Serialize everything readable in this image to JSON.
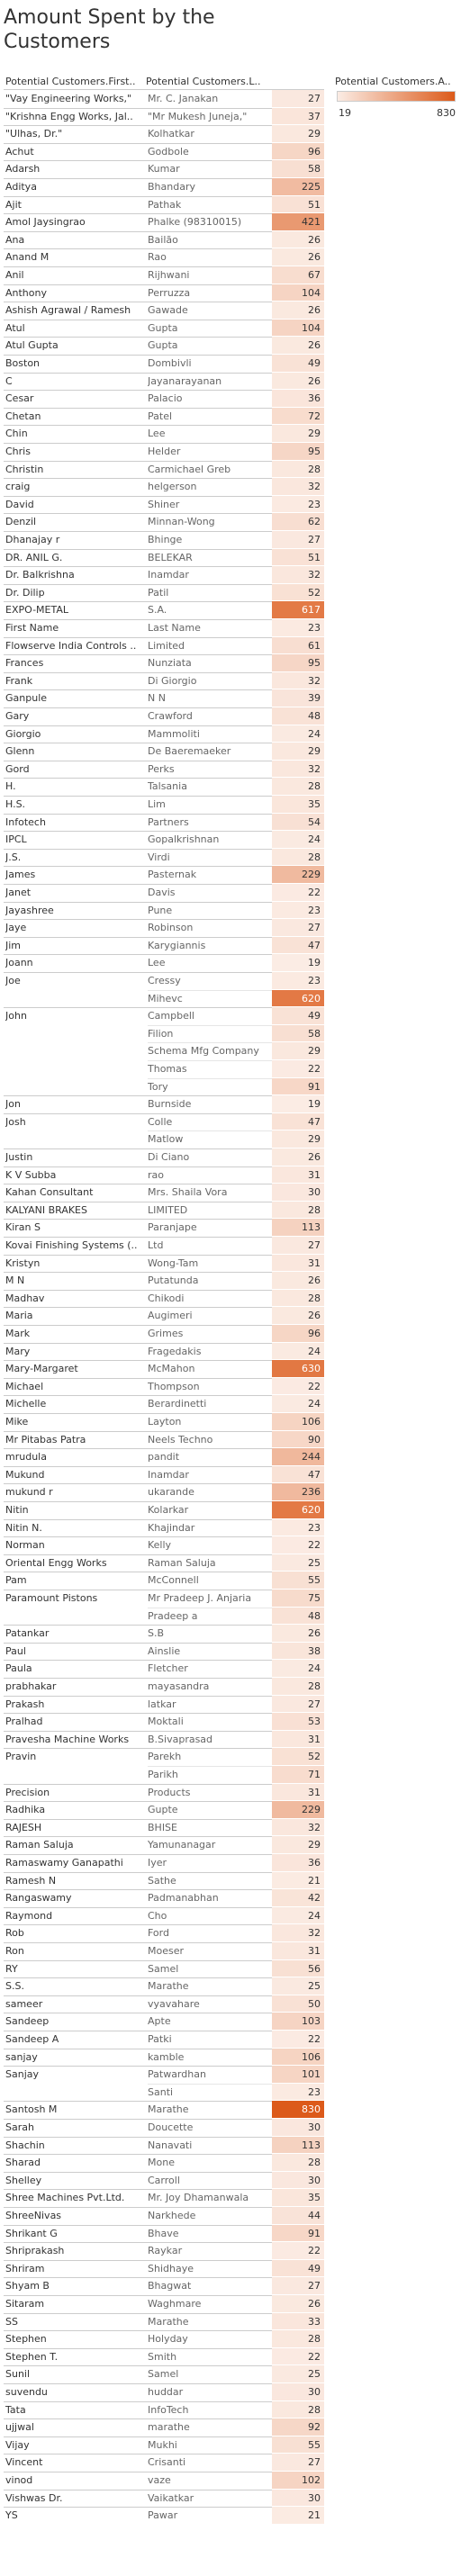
{
  "title": "Amount Spent by the Customers",
  "headers": {
    "first": "Potential Customers.First..",
    "last": "Potential Customers.L..",
    "legend": "Potential Customers.A.."
  },
  "legend": {
    "min": "19",
    "max": "830"
  },
  "colors": {
    "low": "#fbece4",
    "high": "#dc5a1a",
    "grid": "#cccccc"
  },
  "chart_data": {
    "type": "table",
    "title": "Amount Spent by the Customers",
    "columns": [
      "Potential Customers.First..",
      "Potential Customers.L..",
      "Potential Customers.A.."
    ],
    "value_range": [
      19,
      830
    ],
    "rows": [
      {
        "first": "\"Vay Engineering Works,\"",
        "last": "Mr. C. Janakan",
        "value": 27
      },
      {
        "first": "\"Krishna Engg Works, Jal..",
        "last": "\"Mr Mukesh Juneja,\"",
        "value": 37
      },
      {
        "first": "\"Ulhas, Dr.\"",
        "last": "Kolhatkar",
        "value": 29
      },
      {
        "first": "Achut",
        "last": "Godbole",
        "value": 96
      },
      {
        "first": "Adarsh",
        "last": "Kumar",
        "value": 58
      },
      {
        "first": "Aditya",
        "last": "Bhandary",
        "value": 225
      },
      {
        "first": "Ajit",
        "last": "Pathak",
        "value": 51
      },
      {
        "first": "Amol Jaysingrao",
        "last": "Phalke (98310015)",
        "value": 421
      },
      {
        "first": "Ana",
        "last": "Bailão",
        "value": 26
      },
      {
        "first": "Anand M",
        "last": "Rao",
        "value": 26
      },
      {
        "first": "Anil",
        "last": "Rijhwani",
        "value": 67
      },
      {
        "first": "Anthony",
        "last": "Perruzza",
        "value": 104
      },
      {
        "first": "Ashish Agrawal / Ramesh",
        "last": "Gawade",
        "value": 26
      },
      {
        "first": "Atul",
        "last": "Gupta",
        "value": 104
      },
      {
        "first": "Atul Gupta",
        "last": "Gupta",
        "value": 26
      },
      {
        "first": "Boston",
        "last": "Dombivli",
        "value": 49
      },
      {
        "first": "C",
        "last": "Jayanarayanan",
        "value": 26
      },
      {
        "first": "Cesar",
        "last": "Palacio",
        "value": 36
      },
      {
        "first": "Chetan",
        "last": "Patel",
        "value": 72
      },
      {
        "first": "Chin",
        "last": "Lee",
        "value": 29
      },
      {
        "first": "Chris",
        "last": "Helder",
        "value": 95
      },
      {
        "first": "Christin",
        "last": "Carmichael Greb",
        "value": 28
      },
      {
        "first": "craig",
        "last": "helgerson",
        "value": 32
      },
      {
        "first": "David",
        "last": "Shiner",
        "value": 23
      },
      {
        "first": "Denzil",
        "last": "Minnan-Wong",
        "value": 62
      },
      {
        "first": "Dhanajay r",
        "last": "Bhinge",
        "value": 27
      },
      {
        "first": "DR. ANIL G.",
        "last": "BELEKAR",
        "value": 51
      },
      {
        "first": "Dr. Balkrishna",
        "last": "Inamdar",
        "value": 32
      },
      {
        "first": "Dr. Dilip",
        "last": "Patil",
        "value": 52
      },
      {
        "first": "EXPO-METAL",
        "last": "S.A.",
        "value": 617
      },
      {
        "first": "First Name",
        "last": "Last Name",
        "value": 23
      },
      {
        "first": "Flowserve India Controls ..",
        "last": "Limited",
        "value": 61
      },
      {
        "first": "Frances",
        "last": "Nunziata",
        "value": 95
      },
      {
        "first": "Frank",
        "last": "Di Giorgio",
        "value": 32
      },
      {
        "first": "Ganpule",
        "last": "N N",
        "value": 39
      },
      {
        "first": "Gary",
        "last": "Crawford",
        "value": 48
      },
      {
        "first": "Giorgio",
        "last": "Mammoliti",
        "value": 24
      },
      {
        "first": "Glenn",
        "last": "De Baeremaeker",
        "value": 29
      },
      {
        "first": "Gord",
        "last": "Perks",
        "value": 32
      },
      {
        "first": "H.",
        "last": "Talsania",
        "value": 28
      },
      {
        "first": "H.S.",
        "last": "Lim",
        "value": 35
      },
      {
        "first": "Infotech",
        "last": "Partners",
        "value": 54
      },
      {
        "first": "IPCL",
        "last": "Gopalkrishnan",
        "value": 24
      },
      {
        "first": "J.S.",
        "last": "Virdi",
        "value": 28
      },
      {
        "first": "James",
        "last": "Pasternak",
        "value": 229
      },
      {
        "first": "Janet",
        "last": "Davis",
        "value": 22
      },
      {
        "first": "Jayashree",
        "last": "Pune",
        "value": 23
      },
      {
        "first": "Jaye",
        "last": "Robinson",
        "value": 27
      },
      {
        "first": "Jim",
        "last": "Karygiannis",
        "value": 47
      },
      {
        "first": "Joann",
        "last": "Lee",
        "value": 19
      },
      {
        "first": "Joe",
        "last": "Cressy",
        "value": 23
      },
      {
        "first": "",
        "last": "Mihevc",
        "value": 620
      },
      {
        "first": "John",
        "last": "Campbell",
        "value": 49
      },
      {
        "first": "",
        "last": "Filion",
        "value": 58
      },
      {
        "first": "",
        "last": "Schema Mfg Company",
        "value": 29
      },
      {
        "first": "",
        "last": "Thomas",
        "value": 22
      },
      {
        "first": "",
        "last": "Tory",
        "value": 91
      },
      {
        "first": "Jon",
        "last": "Burnside",
        "value": 19
      },
      {
        "first": "Josh",
        "last": "Colle",
        "value": 47
      },
      {
        "first": "",
        "last": "Matlow",
        "value": 29
      },
      {
        "first": "Justin",
        "last": "Di Ciano",
        "value": 26
      },
      {
        "first": "K V Subba",
        "last": "rao",
        "value": 31
      },
      {
        "first": "Kahan Consultant",
        "last": "Mrs. Shaila Vora",
        "value": 30
      },
      {
        "first": "KALYANI BRAKES",
        "last": "LIMITED",
        "value": 28
      },
      {
        "first": "Kiran S",
        "last": "Paranjape",
        "value": 113
      },
      {
        "first": "Kovai Finishing Systems (..",
        "last": "Ltd",
        "value": 27
      },
      {
        "first": "Kristyn",
        "last": "Wong-Tam",
        "value": 31
      },
      {
        "first": "M N",
        "last": "Putatunda",
        "value": 26
      },
      {
        "first": "Madhav",
        "last": "Chikodi",
        "value": 28
      },
      {
        "first": "Maria",
        "last": "Augimeri",
        "value": 26
      },
      {
        "first": "Mark",
        "last": "Grimes",
        "value": 96
      },
      {
        "first": "Mary",
        "last": "Fragedakis",
        "value": 24
      },
      {
        "first": "Mary-Margaret",
        "last": "McMahon",
        "value": 630
      },
      {
        "first": "Michael",
        "last": "Thompson",
        "value": 22
      },
      {
        "first": "Michelle",
        "last": "Berardinetti",
        "value": 24
      },
      {
        "first": "Mike",
        "last": "Layton",
        "value": 106
      },
      {
        "first": "Mr Pitabas Patra",
        "last": "Neels Techno",
        "value": 90
      },
      {
        "first": "mrudula",
        "last": "pandit",
        "value": 244
      },
      {
        "first": "Mukund",
        "last": "Inamdar",
        "value": 47
      },
      {
        "first": "mukund r",
        "last": "ukarande",
        "value": 236
      },
      {
        "first": "Nitin",
        "last": "Kolarkar",
        "value": 620
      },
      {
        "first": "Nitin N.",
        "last": "Khajindar",
        "value": 23
      },
      {
        "first": "Norman",
        "last": "Kelly",
        "value": 22
      },
      {
        "first": "Oriental Engg Works",
        "last": "Raman Saluja",
        "value": 25
      },
      {
        "first": "Pam",
        "last": "McConnell",
        "value": 55
      },
      {
        "first": "Paramount Pistons",
        "last": "Mr Pradeep J. Anjaria",
        "value": 75
      },
      {
        "first": "",
        "last": "Pradeep a",
        "value": 48
      },
      {
        "first": "Patankar",
        "last": "S.B",
        "value": 26
      },
      {
        "first": "Paul",
        "last": "Ainslie",
        "value": 38
      },
      {
        "first": "Paula",
        "last": "Fletcher",
        "value": 24
      },
      {
        "first": "prabhakar",
        "last": "mayasandra",
        "value": 28
      },
      {
        "first": "Prakash",
        "last": "latkar",
        "value": 27
      },
      {
        "first": "Pralhad",
        "last": "Moktali",
        "value": 53
      },
      {
        "first": "Pravesha Machine Works",
        "last": "B.Sivaprasad",
        "value": 31
      },
      {
        "first": "Pravin",
        "last": "Parekh",
        "value": 52
      },
      {
        "first": "",
        "last": "Parikh",
        "value": 71
      },
      {
        "first": "Precision",
        "last": "Products",
        "value": 31
      },
      {
        "first": "Radhika",
        "last": "Gupte",
        "value": 229
      },
      {
        "first": "RAJESH",
        "last": "BHISE",
        "value": 32
      },
      {
        "first": "Raman Saluja",
        "last": "Yamunanagar",
        "value": 29
      },
      {
        "first": "Ramaswamy Ganapathi",
        "last": "Iyer",
        "value": 36
      },
      {
        "first": "Ramesh N",
        "last": "Sathe",
        "value": 21
      },
      {
        "first": "Rangaswamy",
        "last": "Padmanabhan",
        "value": 42
      },
      {
        "first": "Raymond",
        "last": "Cho",
        "value": 24
      },
      {
        "first": "Rob",
        "last": "Ford",
        "value": 32
      },
      {
        "first": "Ron",
        "last": "Moeser",
        "value": 31
      },
      {
        "first": "RY",
        "last": "Samel",
        "value": 56
      },
      {
        "first": "S.S.",
        "last": "Marathe",
        "value": 25
      },
      {
        "first": "sameer",
        "last": "vyavahare",
        "value": 50
      },
      {
        "first": "Sandeep",
        "last": "Apte",
        "value": 103
      },
      {
        "first": "Sandeep A",
        "last": "Patki",
        "value": 22
      },
      {
        "first": "sanjay",
        "last": "kamble",
        "value": 106
      },
      {
        "first": "Sanjay",
        "last": "Patwardhan",
        "value": 101
      },
      {
        "first": "",
        "last": "Santi",
        "value": 23
      },
      {
        "first": "Santosh M",
        "last": "Marathe",
        "value": 830
      },
      {
        "first": "Sarah",
        "last": "Doucette",
        "value": 30
      },
      {
        "first": "Shachin",
        "last": "Nanavati",
        "value": 113
      },
      {
        "first": "Sharad",
        "last": "Mone",
        "value": 28
      },
      {
        "first": "Shelley",
        "last": "Carroll",
        "value": 30
      },
      {
        "first": "Shree Machines Pvt.Ltd.",
        "last": "Mr. Joy Dhamanwala",
        "value": 35
      },
      {
        "first": "ShreeNivas",
        "last": "Narkhede",
        "value": 44
      },
      {
        "first": "Shrikant G",
        "last": "Bhave",
        "value": 91
      },
      {
        "first": "Shriprakash",
        "last": "Raykar",
        "value": 22
      },
      {
        "first": "Shriram",
        "last": "Shidhaye",
        "value": 49
      },
      {
        "first": "Shyam B",
        "last": "Bhagwat",
        "value": 27
      },
      {
        "first": "Sitaram",
        "last": "Waghmare",
        "value": 26
      },
      {
        "first": "SS",
        "last": "Marathe",
        "value": 33
      },
      {
        "first": "Stephen",
        "last": "Holyday",
        "value": 28
      },
      {
        "first": "Stephen T.",
        "last": "Smith",
        "value": 22
      },
      {
        "first": "Sunil",
        "last": "Samel",
        "value": 25
      },
      {
        "first": "suvendu",
        "last": "huddar",
        "value": 30
      },
      {
        "first": "Tata",
        "last": "InfoTech",
        "value": 28
      },
      {
        "first": "ujjwal",
        "last": "marathe",
        "value": 92
      },
      {
        "first": "Vijay",
        "last": "Mukhi",
        "value": 55
      },
      {
        "first": "Vincent",
        "last": "Crisanti",
        "value": 27
      },
      {
        "first": "vinod",
        "last": "vaze",
        "value": 102
      },
      {
        "first": "Vishwas Dr.",
        "last": "Vaikatkar",
        "value": 30
      },
      {
        "first": "YS",
        "last": "Pawar",
        "value": 21
      }
    ]
  }
}
